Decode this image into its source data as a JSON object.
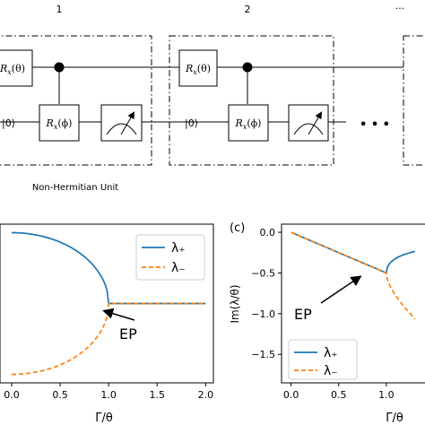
{
  "circuit": {
    "unit_numbers": [
      "1",
      "2"
    ],
    "top_ellipsis": "...",
    "mid_ellipsis": "• • •",
    "gate_theta": "R",
    "gate_theta_sub": "x",
    "gate_theta_arg": "(θ)",
    "gate_phi": "R",
    "gate_phi_sub": "x",
    "gate_phi_arg": "(ϕ)",
    "ket_zero": "|0⟩",
    "unit_caption": "Non-Hermitian Unit"
  },
  "panels": {
    "c_label": "(c)",
    "ep_label": "EP",
    "x_label": "Γ/θ",
    "c_y_label": "Im(λ/θ)"
  },
  "chart_data": [
    {
      "id": "b",
      "type": "line",
      "title": "",
      "xlabel": "Γ/θ",
      "ylabel": "",
      "xlim": [
        -0.12,
        2.08
      ],
      "ylim": [
        -1.12,
        1.12
      ],
      "xticks": [
        "0.0",
        "0.5",
        "1.0",
        "1.5",
        "2.0"
      ],
      "yticks": [],
      "legend": {
        "position": "top-right",
        "entries": [
          "λ₊",
          "λ₋"
        ]
      },
      "series": [
        {
          "name": "λ₊",
          "color": "#1f77b4",
          "style": "solid",
          "x": [
            0,
            0.2,
            0.4,
            0.6,
            0.8,
            0.9,
            0.95,
            0.99,
            1.0,
            1.5,
            2.0
          ],
          "y": [
            1.0,
            0.98,
            0.917,
            0.8,
            0.6,
            0.436,
            0.312,
            0.141,
            0.0,
            0.0,
            0.0
          ]
        },
        {
          "name": "λ₋",
          "color": "#ff7f0e",
          "style": "dashed",
          "x": [
            0,
            0.2,
            0.4,
            0.6,
            0.8,
            0.9,
            0.95,
            0.99,
            1.0,
            1.5,
            2.0
          ],
          "y": [
            -1.0,
            -0.98,
            -0.917,
            -0.8,
            -0.6,
            -0.436,
            -0.312,
            -0.141,
            0.0,
            0.0,
            0.0
          ]
        }
      ],
      "annotation": {
        "text": "EP",
        "x": 1.0,
        "y": 0.0
      }
    },
    {
      "id": "c",
      "type": "line",
      "title": "",
      "xlabel": "Γ/θ",
      "ylabel": "Im(λ/θ)",
      "xlim": [
        -0.1,
        1.5
      ],
      "ylim": [
        -1.85,
        0.1
      ],
      "xticks": [
        "0.0",
        "0.5",
        "1.0"
      ],
      "yticks": [
        "0.0",
        "−0.5",
        "−1.0",
        "−1.5"
      ],
      "legend": {
        "position": "bottom-left",
        "entries": [
          "λ₊",
          "λ₋"
        ]
      },
      "series": [
        {
          "name": "λ₊",
          "color": "#1f77b4",
          "style": "solid",
          "x": [
            0,
            0.5,
            1.0,
            1.1,
            1.2,
            1.3
          ],
          "y": [
            0.0,
            -0.25,
            -0.5,
            -0.096,
            -0.037,
            -0.017
          ]
        },
        {
          "name": "λ₋",
          "color": "#ff7f0e",
          "style": "dashed",
          "x": [
            0,
            0.5,
            1.0,
            1.1,
            1.2,
            1.3
          ],
          "y": [
            0.0,
            -0.25,
            -0.5,
            -1.004,
            -1.163,
            -1.283
          ]
        }
      ],
      "annotation": {
        "text": "EP",
        "x": 1.0,
        "y": -0.5
      }
    }
  ]
}
